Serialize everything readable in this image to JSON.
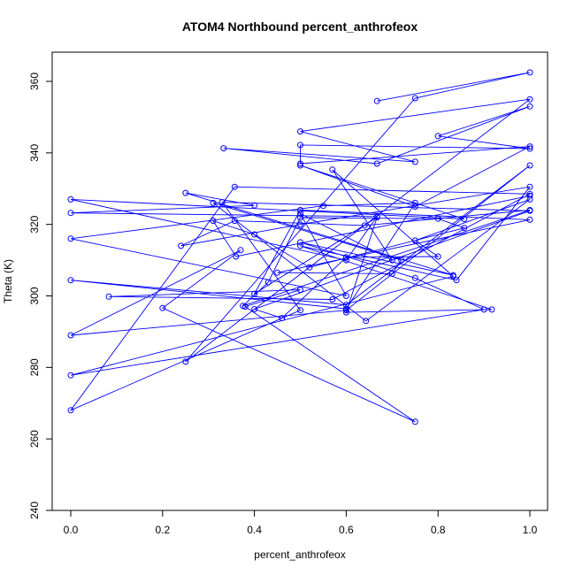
{
  "chart_data": {
    "type": "line",
    "title": "ATOM4 Northbound percent_anthrofeox",
    "xlabel": "percent_anthrofeox",
    "ylabel": "Theta (K)",
    "xlim": [
      0,
      1
    ],
    "ylim": [
      240,
      365
    ],
    "x_ticks": [
      0.0,
      0.2,
      0.4,
      0.6,
      0.8,
      1.0
    ],
    "x_tick_labels": [
      "0.0",
      "0.2",
      "0.4",
      "0.6",
      "0.8",
      "1.0"
    ],
    "y_ticks": [
      240,
      260,
      280,
      300,
      320,
      340,
      360
    ],
    "y_tick_labels": [
      "240",
      "260",
      "280",
      "300",
      "320",
      "340",
      "360"
    ],
    "grid": false,
    "legend": "none",
    "series": [
      {
        "color": "#0000ff",
        "marker": "open-circle",
        "x": [
          0.667,
          1.0,
          0.75,
          0.25,
          1.0,
          0.5,
          0.75,
          0.333,
          0.667,
          1.0,
          0.8,
          1.0,
          0.5,
          0.5,
          1.0,
          0.75,
          0.5,
          0.857,
          0.0,
          0.6,
          0.667,
          0.0,
          0.4,
          0.25,
          0.833,
          0.5,
          0.75,
          0.9,
          0.0,
          0.833,
          0.57,
          0.7,
          0.5,
          0.6,
          0.0,
          0.55,
          0.75,
          0.6,
          0.0,
          0.6,
          1.0,
          0.6,
          0.0,
          0.37,
          0.2,
          0.75,
          0.38,
          0.5,
          0.083,
          0.57,
          1.0,
          0.357,
          0.0,
          0.5,
          0.33,
          1.0,
          0.4,
          0.46,
          0.6,
          0.8,
          0.75,
          1.0,
          0.643,
          0.31,
          0.72,
          0.7,
          0.45,
          1.0,
          0.5,
          0.4,
          0.667,
          0.6,
          0.917,
          0.5,
          0.84,
          1.0,
          0.5,
          0.24,
          0.357,
          0.64,
          1.0,
          0.375,
          0.43,
          0.5,
          0.8,
          0.857,
          0.52,
          0.4,
          0.31,
          0.36,
          1.0
        ],
        "y": [
          354.5,
          362.5,
          355.3,
          281.6,
          355.0,
          346.0,
          337.5,
          341.3,
          337.0,
          353.0,
          344.7,
          341.2,
          342.2,
          337.0,
          341.8,
          325.0,
          336.5,
          321.5,
          327.0,
          310.0,
          322.2,
          323.2,
          325.3,
          328.8,
          305.8,
          315.0,
          305.0,
          296.2,
          277.8,
          305.5,
          335.3,
          310.0,
          323.0,
          300.0,
          316.0,
          325.2,
          326.0,
          296.4,
          304.4,
          297.5,
          336.5,
          296.0,
          289.0,
          312.8,
          296.6,
          264.8,
          297.0,
          301.7,
          299.8,
          299.0,
          328.5,
          330.5,
          268.0,
          296.0,
          326.2,
          323.8,
          296.3,
          293.8,
          310.8,
          311.0,
          315.5,
          327.0,
          293.0,
          326.0,
          310.0,
          306.2,
          306.5,
          321.3,
          324.0,
          300.6,
          322.0,
          295.4,
          296.2,
          314.0,
          304.4,
          330.5,
          320.0,
          314.0,
          321.0,
          319.7,
          324.0,
          297.2,
          303.8,
          321.9,
          321.6,
          319.0,
          308.0,
          317.2,
          321.0,
          311.0,
          328.0
        ]
      }
    ]
  }
}
